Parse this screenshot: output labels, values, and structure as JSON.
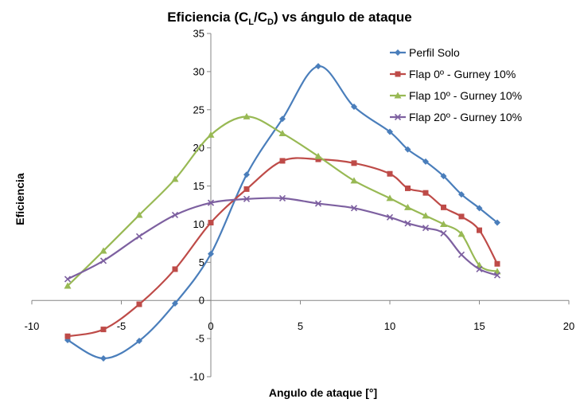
{
  "chart_data": {
    "type": "line",
    "title": {
      "prefix": "Eficiencia (C",
      "sub1": "L",
      "mid": "/C",
      "sub2": "D",
      "suffix": ") vs ángulo de ataque"
    },
    "xlabel": "Angulo de ataque [°]",
    "ylabel": "Eficiencia",
    "xlim": [
      -10,
      20
    ],
    "ylim": [
      -10,
      35
    ],
    "xticks": [
      "-10",
      "-5",
      "0",
      "5",
      "10",
      "15",
      "20"
    ],
    "yticks": [
      "-10",
      "-5",
      "0",
      "5",
      "10",
      "15",
      "20",
      "25",
      "30",
      "35"
    ],
    "grid": false,
    "legend_position": "top-right",
    "smooth": true,
    "series": [
      {
        "name": "Perfil Solo",
        "color": "#4a7ebb",
        "marker": "diamond",
        "x": [
          -8,
          -6,
          -4,
          -2,
          0,
          2,
          4,
          6,
          8,
          10,
          11,
          12,
          13,
          14,
          15,
          16
        ],
        "y": [
          -5.2,
          -7.6,
          -5.3,
          -0.4,
          6.1,
          16.5,
          23.8,
          30.7,
          25.4,
          22.1,
          19.8,
          18.2,
          16.3,
          13.9,
          12.1,
          10.2
        ]
      },
      {
        "name": "Flap 0º - Gurney 10%",
        "color": "#be4b48",
        "marker": "square",
        "x": [
          -8,
          -6,
          -4,
          -2,
          0,
          2,
          4,
          6,
          8,
          10,
          11,
          12,
          13,
          14,
          15,
          16
        ],
        "y": [
          -4.7,
          -3.8,
          -0.5,
          4.1,
          10.2,
          14.6,
          18.3,
          18.5,
          18.0,
          16.6,
          14.7,
          14.1,
          12.2,
          11.0,
          9.2,
          4.8
        ]
      },
      {
        "name": "Flap 10º - Gurney 10%",
        "color": "#98b954",
        "marker": "triangle",
        "x": [
          -8,
          -6,
          -4,
          -2,
          0,
          2,
          4,
          6,
          8,
          10,
          11,
          12,
          13,
          14,
          15,
          16
        ],
        "y": [
          1.9,
          6.5,
          11.2,
          15.9,
          21.7,
          24.1,
          21.9,
          18.9,
          15.7,
          13.4,
          12.2,
          11.1,
          10.0,
          8.7,
          4.6,
          3.8
        ]
      },
      {
        "name": "Flap 20º - Gurney 10%",
        "color": "#7d60a0",
        "marker": "x",
        "x": [
          -8,
          -6,
          -4,
          -2,
          0,
          2,
          4,
          6,
          8,
          10,
          11,
          12,
          13,
          14,
          15,
          16
        ],
        "y": [
          2.8,
          5.2,
          8.4,
          11.2,
          12.8,
          13.3,
          13.4,
          12.7,
          12.1,
          10.9,
          10.1,
          9.5,
          8.8,
          6.0,
          4.1,
          3.3
        ]
      }
    ]
  }
}
